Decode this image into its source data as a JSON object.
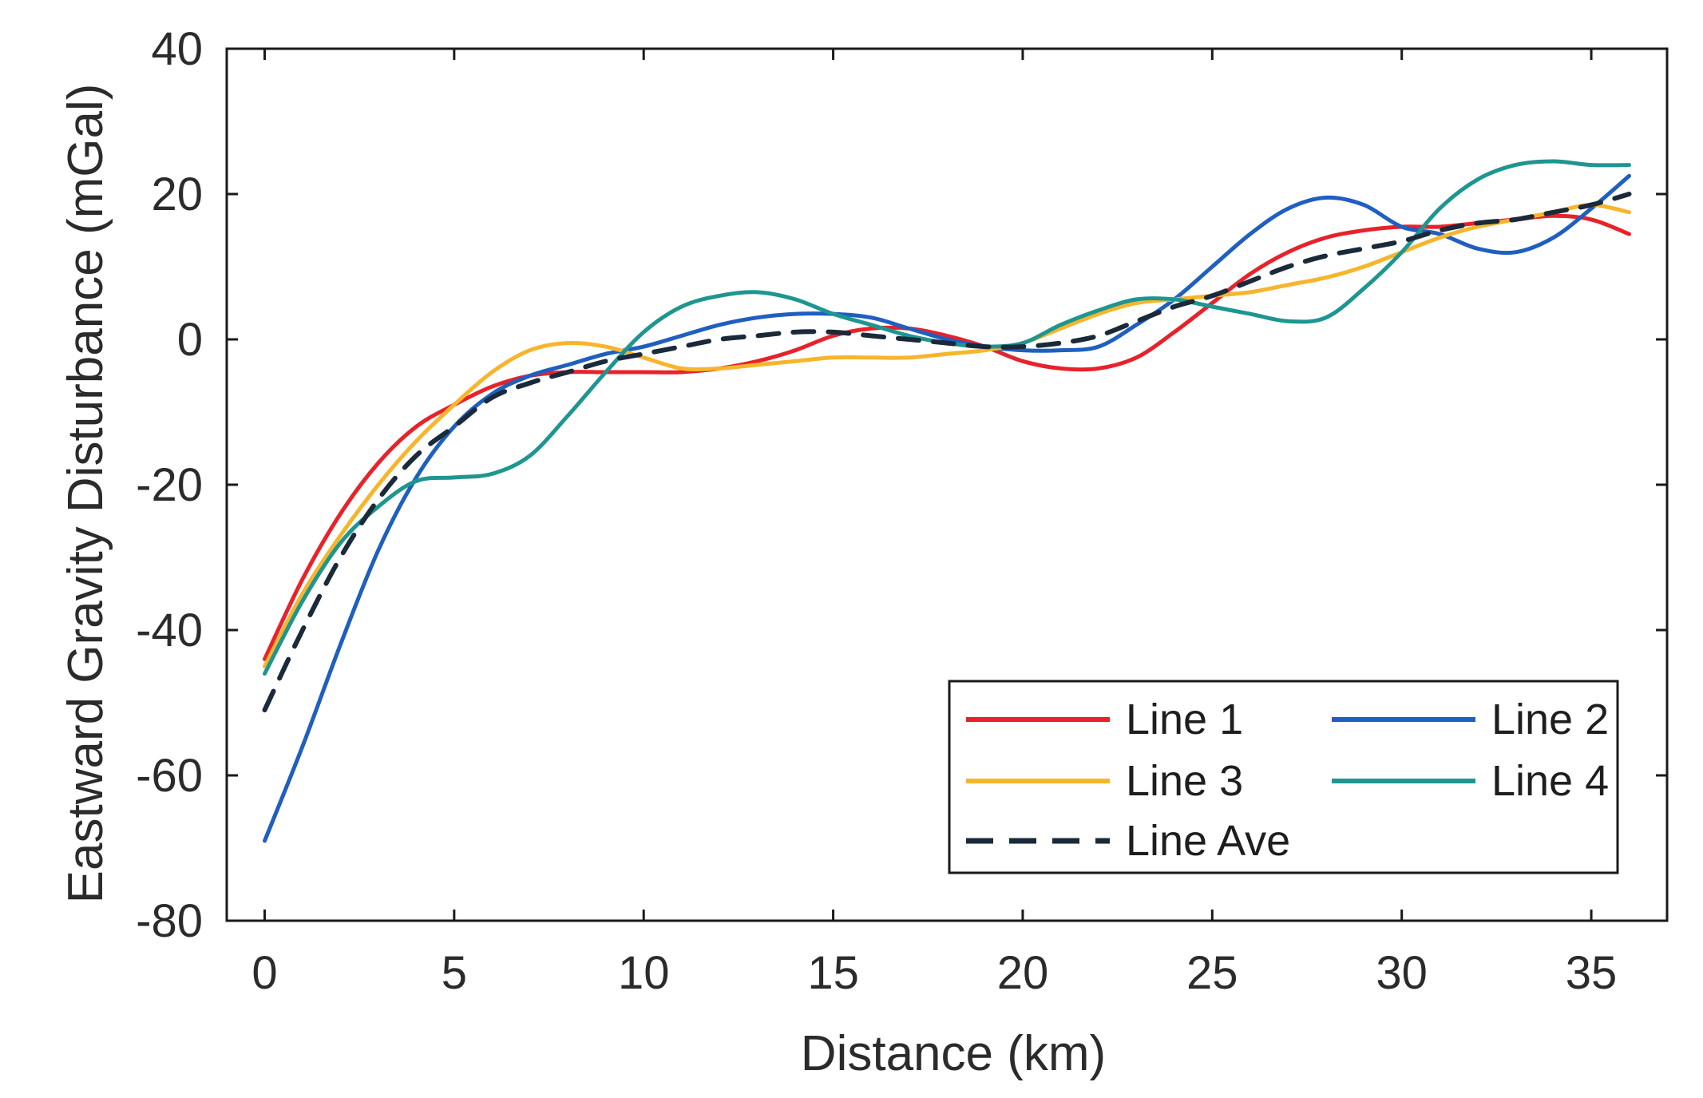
{
  "chart_data": {
    "type": "line",
    "title": "",
    "xlabel": "Distance (km)",
    "ylabel": "Eastward Gravity Disturbance (mGal)",
    "xlim": [
      -1,
      37
    ],
    "ylim": [
      -80,
      40
    ],
    "xticks": [
      0,
      5,
      10,
      15,
      20,
      25,
      30,
      35
    ],
    "yticks": [
      40,
      20,
      0,
      -20,
      -40,
      -60,
      -80
    ],
    "grid": false,
    "legend_position": "lower-right",
    "series": [
      {
        "name": "Line 1",
        "color": "#e8222a",
        "style": "solid",
        "x": [
          0,
          1,
          2,
          3,
          4,
          5,
          6,
          7,
          8,
          9,
          10,
          11,
          12,
          13,
          14,
          15,
          16,
          17,
          18,
          19,
          20,
          21,
          22,
          23,
          24,
          25,
          26,
          27,
          28,
          29,
          30,
          31,
          32,
          33,
          34,
          35,
          36
        ],
        "y": [
          -44,
          -33,
          -24,
          -17,
          -12,
          -9,
          -6.5,
          -5,
          -4.5,
          -4.5,
          -4.5,
          -4.5,
          -4,
          -3,
          -1.5,
          0.5,
          1.5,
          1.5,
          0.5,
          -1,
          -3,
          -4,
          -4,
          -2.5,
          1,
          5,
          9,
          12,
          14,
          15,
          15.5,
          15.5,
          16,
          16.5,
          17,
          16.5,
          14.5
        ]
      },
      {
        "name": "Line 2",
        "color": "#1f5fbf",
        "style": "solid",
        "x": [
          0,
          1,
          2,
          3,
          4,
          5,
          6,
          7,
          8,
          9,
          10,
          11,
          12,
          13,
          14,
          15,
          16,
          17,
          18,
          19,
          20,
          21,
          22,
          23,
          24,
          25,
          26,
          27,
          28,
          29,
          30,
          31,
          32,
          33,
          34,
          35,
          36
        ],
        "y": [
          -69,
          -56,
          -42,
          -29,
          -19,
          -12,
          -7.5,
          -5,
          -3.5,
          -2,
          -1,
          0.5,
          2,
          3,
          3.5,
          3.5,
          3,
          1.5,
          0,
          -1,
          -1.5,
          -1.5,
          -1,
          2,
          5.5,
          10,
          14.5,
          18,
          19.5,
          18.5,
          15.5,
          14.5,
          12.5,
          12,
          14,
          18,
          22.5
        ]
      },
      {
        "name": "Line 3",
        "color": "#f7b52c",
        "style": "solid",
        "x": [
          0,
          1,
          2,
          3,
          4,
          5,
          6,
          7,
          8,
          9,
          10,
          11,
          12,
          13,
          14,
          15,
          16,
          17,
          18,
          19,
          20,
          21,
          22,
          23,
          24,
          25,
          26,
          27,
          28,
          29,
          30,
          31,
          32,
          33,
          34,
          35,
          36
        ],
        "y": [
          -45,
          -35,
          -27,
          -20,
          -14,
          -9,
          -4.5,
          -1.5,
          -0.5,
          -1,
          -2.5,
          -4,
          -4,
          -3.5,
          -3,
          -2.5,
          -2.5,
          -2.5,
          -2,
          -1.5,
          -0.5,
          1.5,
          3.5,
          5,
          5.5,
          6,
          6.5,
          7.5,
          8.5,
          10,
          12,
          14,
          15.5,
          16.5,
          17.5,
          18.5,
          17.5
        ]
      },
      {
        "name": "Line 4",
        "color": "#1e9690",
        "style": "solid",
        "x": [
          0,
          1,
          2,
          3,
          4,
          5,
          6,
          7,
          8,
          9,
          10,
          11,
          12,
          13,
          14,
          15,
          16,
          17,
          18,
          19,
          20,
          21,
          22,
          23,
          24,
          25,
          26,
          27,
          28,
          29,
          30,
          31,
          32,
          33,
          34,
          35,
          36
        ],
        "y": [
          -46,
          -36,
          -28,
          -23,
          -19.5,
          -19,
          -18.5,
          -16,
          -10.5,
          -4.5,
          1,
          4.5,
          6,
          6.5,
          5.5,
          3.5,
          2,
          0.5,
          -0.5,
          -1,
          -0.5,
          2,
          4,
          5.5,
          5.5,
          4.5,
          3.5,
          2.5,
          3,
          7,
          12,
          18,
          22,
          24,
          24.5,
          24,
          24
        ]
      },
      {
        "name": "Line Ave",
        "color": "#1a2a3a",
        "style": "dashed",
        "x": [
          0,
          1,
          2,
          3,
          4,
          5,
          6,
          7,
          8,
          9,
          10,
          11,
          12,
          13,
          14,
          15,
          16,
          17,
          18,
          19,
          20,
          21,
          22,
          23,
          24,
          25,
          26,
          27,
          28,
          29,
          30,
          31,
          32,
          33,
          34,
          35,
          36
        ],
        "y": [
          -51,
          -40,
          -30,
          -22,
          -16,
          -12,
          -8,
          -6,
          -4.5,
          -3,
          -2,
          -1,
          0,
          0.5,
          1,
          1,
          0.5,
          0,
          -0.5,
          -1,
          -1,
          -0.5,
          0.5,
          2.5,
          4.5,
          6,
          8,
          10,
          11.5,
          12.5,
          13.5,
          15,
          16,
          16.5,
          17.5,
          18.5,
          20
        ]
      }
    ]
  }
}
